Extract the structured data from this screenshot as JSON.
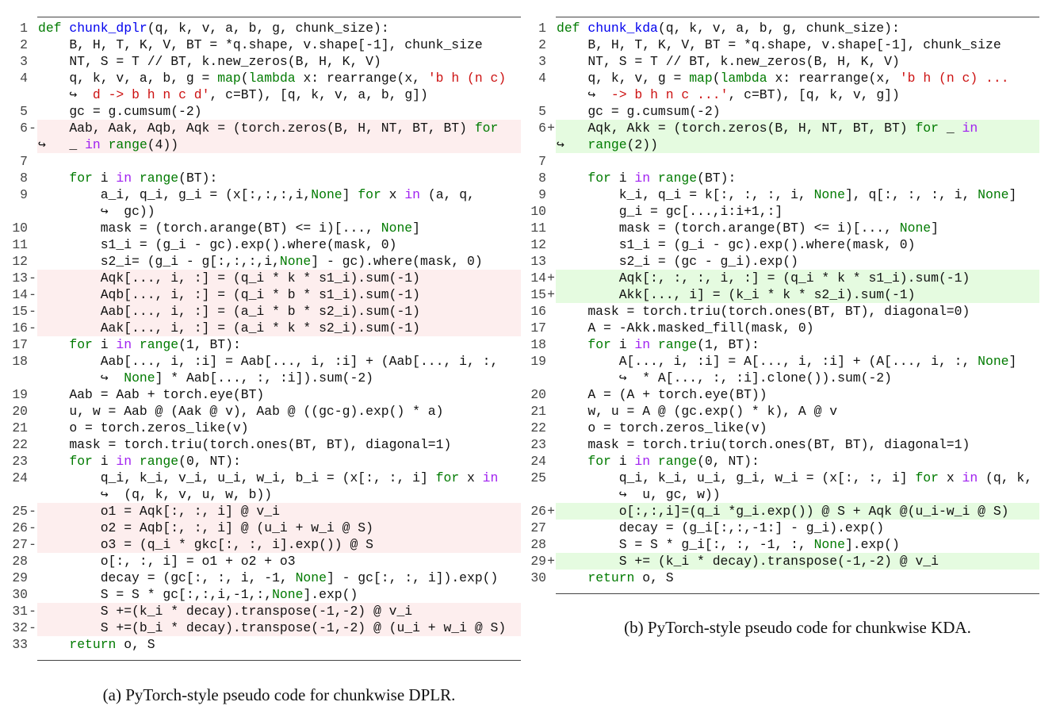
{
  "left": {
    "caption": "(a) PyTorch-style pseudo code for chunkwise DPLR.",
    "lines": [
      {
        "n": "1",
        "d": "",
        "segs": [
          [
            "k",
            "def"
          ],
          [
            "t",
            " "
          ],
          [
            "f",
            "chunk_dplr"
          ],
          [
            "t",
            "(q, k, v, a, b, g, chunk_size):"
          ]
        ]
      },
      {
        "n": "2",
        "d": "",
        "segs": [
          [
            "t",
            "    B, H, T, K, V, BT = *q.shape, v.shape[-1], chunk_size"
          ]
        ]
      },
      {
        "n": "3",
        "d": "",
        "segs": [
          [
            "t",
            "    NT, S = T // BT, k.new_zeros(B, H, K, V)"
          ]
        ]
      },
      {
        "n": "4",
        "d": "",
        "segs": [
          [
            "t",
            "    q, k, v, a, b, g = "
          ],
          [
            "k",
            "map"
          ],
          [
            "t",
            "("
          ],
          [
            "k",
            "lambda"
          ],
          [
            "t",
            " x: rearrange(x, "
          ],
          [
            "s",
            "'b h (n c)"
          ]
        ],
        "cont": [
          [
            "t",
            "    ↪  "
          ],
          [
            "s",
            "d -> b h n c d'"
          ],
          [
            "t",
            ", c=BT), [q, k, v, a, b, g])"
          ]
        ]
      },
      {
        "n": "5",
        "d": "",
        "segs": [
          [
            "t",
            "    gc = g.cumsum(-2)"
          ]
        ]
      },
      {
        "n": "6",
        "d": "-",
        "segs": [
          [
            "t",
            "    Aab, Aak, Aqb, Aqk = (torch.zeros(B, H, NT, BT, BT) "
          ],
          [
            "k",
            "for"
          ]
        ],
        "cont": [
          [
            "t",
            "↪   _ "
          ],
          [
            "p",
            "in"
          ],
          [
            "t",
            " "
          ],
          [
            "k",
            "range"
          ],
          [
            "t",
            "(4))"
          ]
        ]
      },
      {
        "n": "7",
        "d": "",
        "segs": []
      },
      {
        "n": "8",
        "d": "",
        "segs": [
          [
            "t",
            "    "
          ],
          [
            "k",
            "for"
          ],
          [
            "t",
            " i "
          ],
          [
            "p",
            "in"
          ],
          [
            "t",
            " "
          ],
          [
            "k",
            "range"
          ],
          [
            "t",
            "(BT):"
          ]
        ]
      },
      {
        "n": "9",
        "d": "",
        "segs": [
          [
            "t",
            "        a_i, q_i, g_i = (x[:,:,:,i,"
          ],
          [
            "k",
            "None"
          ],
          [
            "t",
            "] "
          ],
          [
            "k",
            "for"
          ],
          [
            "t",
            " x "
          ],
          [
            "p",
            "in"
          ],
          [
            "t",
            " (a, q,"
          ]
        ],
        "cont": [
          [
            "t",
            "        ↪  gc))"
          ]
        ]
      },
      {
        "n": "10",
        "d": "",
        "segs": [
          [
            "t",
            "        mask = (torch.arange(BT) <= i)[..., "
          ],
          [
            "k",
            "None"
          ],
          [
            "t",
            "]"
          ]
        ]
      },
      {
        "n": "11",
        "d": "",
        "segs": [
          [
            "t",
            "        s1_i = (g_i - gc).exp().where(mask, 0)"
          ]
        ]
      },
      {
        "n": "12",
        "d": "",
        "segs": [
          [
            "t",
            "        s2_i= (g_i - g[:,:,:,i,"
          ],
          [
            "k",
            "None"
          ],
          [
            "t",
            "] - gc).where(mask, 0)"
          ]
        ]
      },
      {
        "n": "13",
        "d": "-",
        "segs": [
          [
            "t",
            "        Aqk[..., i, :] = (q_i * k * s1_i).sum(-1)"
          ]
        ]
      },
      {
        "n": "14",
        "d": "-",
        "segs": [
          [
            "t",
            "        Aqb[..., i, :] = (q_i * b * s1_i).sum(-1)"
          ]
        ]
      },
      {
        "n": "15",
        "d": "-",
        "segs": [
          [
            "t",
            "        Aab[..., i, :] = (a_i * b * s2_i).sum(-1)"
          ]
        ]
      },
      {
        "n": "16",
        "d": "-",
        "segs": [
          [
            "t",
            "        Aak[..., i, :] = (a_i * k * s2_i).sum(-1)"
          ]
        ]
      },
      {
        "n": "17",
        "d": "",
        "segs": [
          [
            "t",
            "    "
          ],
          [
            "k",
            "for"
          ],
          [
            "t",
            " i "
          ],
          [
            "p",
            "in"
          ],
          [
            "t",
            " "
          ],
          [
            "k",
            "range"
          ],
          [
            "t",
            "(1, BT):"
          ]
        ]
      },
      {
        "n": "18",
        "d": "",
        "segs": [
          [
            "t",
            "        Aab[..., i, :i] = Aab[..., i, :i] + (Aab[..., i, :,"
          ]
        ],
        "cont": [
          [
            "t",
            "        ↪  "
          ],
          [
            "k",
            "None"
          ],
          [
            "t",
            "] * Aab[..., :, :i]).sum(-2)"
          ]
        ]
      },
      {
        "n": "19",
        "d": "",
        "segs": [
          [
            "t",
            "    Aab = Aab + torch.eye(BT)"
          ]
        ]
      },
      {
        "n": "20",
        "d": "",
        "segs": [
          [
            "t",
            "    u, w = Aab @ (Aak @ v), Aab @ ((gc-g).exp() * a)"
          ]
        ]
      },
      {
        "n": "21",
        "d": "",
        "segs": [
          [
            "t",
            "    o = torch.zeros_like(v)"
          ]
        ]
      },
      {
        "n": "22",
        "d": "",
        "segs": [
          [
            "t",
            "    mask = torch.triu(torch.ones(BT, BT), diagonal=1)"
          ]
        ]
      },
      {
        "n": "23",
        "d": "",
        "segs": [
          [
            "t",
            "    "
          ],
          [
            "k",
            "for"
          ],
          [
            "t",
            " i "
          ],
          [
            "p",
            "in"
          ],
          [
            "t",
            " "
          ],
          [
            "k",
            "range"
          ],
          [
            "t",
            "(0, NT):"
          ]
        ]
      },
      {
        "n": "24",
        "d": "",
        "segs": [
          [
            "t",
            "        q_i, k_i, v_i, u_i, w_i, b_i = (x[:, :, i] "
          ],
          [
            "k",
            "for"
          ],
          [
            "t",
            " x "
          ],
          [
            "p",
            "in"
          ]
        ],
        "cont": [
          [
            "t",
            "        ↪  (q, k, v, u, w, b))"
          ]
        ]
      },
      {
        "n": "25",
        "d": "-",
        "segs": [
          [
            "t",
            "        o1 = Aqk[:, :, i] @ v_i"
          ]
        ]
      },
      {
        "n": "26",
        "d": "-",
        "segs": [
          [
            "t",
            "        o2 = Aqb[:, :, i] @ (u_i + w_i @ S)"
          ]
        ]
      },
      {
        "n": "27",
        "d": "-",
        "segs": [
          [
            "t",
            "        o3 = (q_i * gkc[:, :, i].exp()) @ S"
          ]
        ]
      },
      {
        "n": "28",
        "d": "",
        "segs": [
          [
            "t",
            "        o[:, :, i] = o1 + o2 + o3"
          ]
        ]
      },
      {
        "n": "29",
        "d": "",
        "segs": [
          [
            "t",
            "        decay = (gc[:, :, i, -1, "
          ],
          [
            "k",
            "None"
          ],
          [
            "t",
            "] - gc[:, :, i]).exp()"
          ]
        ]
      },
      {
        "n": "30",
        "d": "",
        "segs": [
          [
            "t",
            "        S = S * gc[:,:,i,-1,:,"
          ],
          [
            "k",
            "None"
          ],
          [
            "t",
            "].exp()"
          ]
        ]
      },
      {
        "n": "31",
        "d": "-",
        "segs": [
          [
            "t",
            "        S +=(k_i * decay).transpose(-1,-2) @ v_i"
          ]
        ]
      },
      {
        "n": "32",
        "d": "-",
        "segs": [
          [
            "t",
            "        S +=(b_i * decay).transpose(-1,-2) @ (u_i + w_i @ S)"
          ]
        ]
      },
      {
        "n": "33",
        "d": "",
        "segs": [
          [
            "t",
            "    "
          ],
          [
            "k",
            "return"
          ],
          [
            "t",
            " o, S"
          ]
        ]
      }
    ]
  },
  "right": {
    "caption": "(b) PyTorch-style pseudo code for chunkwise KDA.",
    "lines": [
      {
        "n": "1",
        "d": "",
        "segs": [
          [
            "k",
            "def"
          ],
          [
            "t",
            " "
          ],
          [
            "f",
            "chunk_kda"
          ],
          [
            "t",
            "(q, k, v, a, b, g, chunk_size):"
          ]
        ]
      },
      {
        "n": "2",
        "d": "",
        "segs": [
          [
            "t",
            "    B, H, T, K, V, BT = *q.shape, v.shape[-1], chunk_size"
          ]
        ]
      },
      {
        "n": "3",
        "d": "",
        "segs": [
          [
            "t",
            "    NT, S = T // BT, k.new_zeros(B, H, K, V)"
          ]
        ]
      },
      {
        "n": "4",
        "d": "",
        "segs": [
          [
            "t",
            "    q, k, v, g = "
          ],
          [
            "k",
            "map"
          ],
          [
            "t",
            "("
          ],
          [
            "k",
            "lambda"
          ],
          [
            "t",
            " x: rearrange(x, "
          ],
          [
            "s",
            "'b h (n c) ..."
          ]
        ],
        "cont": [
          [
            "t",
            "    ↪  "
          ],
          [
            "s",
            "-> b h n c ...'"
          ],
          [
            "t",
            ", c=BT), [q, k, v, g])"
          ]
        ]
      },
      {
        "n": "5",
        "d": "",
        "segs": [
          [
            "t",
            "    gc = g.cumsum(-2)"
          ]
        ]
      },
      {
        "n": "6",
        "d": "+",
        "segs": [
          [
            "t",
            "    Aqk, Akk = (torch.zeros(B, H, NT, BT, BT) "
          ],
          [
            "k",
            "for"
          ],
          [
            "t",
            " _ "
          ],
          [
            "p",
            "in"
          ]
        ],
        "cont": [
          [
            "t",
            "↪   "
          ],
          [
            "k",
            "range"
          ],
          [
            "t",
            "(2))"
          ]
        ]
      },
      {
        "n": "7",
        "d": "",
        "segs": []
      },
      {
        "n": "8",
        "d": "",
        "segs": [
          [
            "t",
            "    "
          ],
          [
            "k",
            "for"
          ],
          [
            "t",
            " i "
          ],
          [
            "p",
            "in"
          ],
          [
            "t",
            " "
          ],
          [
            "k",
            "range"
          ],
          [
            "t",
            "(BT):"
          ]
        ]
      },
      {
        "n": "9",
        "d": "",
        "segs": [
          [
            "t",
            "        k_i, q_i = k[:, :, :, i, "
          ],
          [
            "k",
            "None"
          ],
          [
            "t",
            "], q[:, :, :, i, "
          ],
          [
            "k",
            "None"
          ],
          [
            "t",
            "]"
          ]
        ]
      },
      {
        "n": "10",
        "d": "",
        "segs": [
          [
            "t",
            "        g_i = gc[...,i:i+1,:]"
          ]
        ]
      },
      {
        "n": "11",
        "d": "",
        "segs": [
          [
            "t",
            "        mask = (torch.arange(BT) <= i)[..., "
          ],
          [
            "k",
            "None"
          ],
          [
            "t",
            "]"
          ]
        ]
      },
      {
        "n": "12",
        "d": "",
        "segs": [
          [
            "t",
            "        s1_i = (g_i - gc).exp().where(mask, 0)"
          ]
        ]
      },
      {
        "n": "13",
        "d": "",
        "segs": [
          [
            "t",
            "        s2_i = (gc - g_i).exp()"
          ]
        ]
      },
      {
        "n": "14",
        "d": "+",
        "segs": [
          [
            "t",
            "        Aqk[:, :, :, i, :] = (q_i * k * s1_i).sum(-1)"
          ]
        ]
      },
      {
        "n": "15",
        "d": "+",
        "segs": [
          [
            "t",
            "        Akk[..., i] = (k_i * k * s2_i).sum(-1)"
          ]
        ]
      },
      {
        "n": "16",
        "d": "",
        "segs": [
          [
            "t",
            "    mask = torch.triu(torch.ones(BT, BT), diagonal=0)"
          ]
        ]
      },
      {
        "n": "17",
        "d": "",
        "segs": [
          [
            "t",
            "    A = -Akk.masked_fill(mask, 0)"
          ]
        ]
      },
      {
        "n": "18",
        "d": "",
        "segs": [
          [
            "t",
            "    "
          ],
          [
            "k",
            "for"
          ],
          [
            "t",
            " i "
          ],
          [
            "p",
            "in"
          ],
          [
            "t",
            " "
          ],
          [
            "k",
            "range"
          ],
          [
            "t",
            "(1, BT):"
          ]
        ]
      },
      {
        "n": "19",
        "d": "",
        "segs": [
          [
            "t",
            "        A[..., i, :i] = A[..., i, :i] + (A[..., i, :, "
          ],
          [
            "k",
            "None"
          ],
          [
            "t",
            "]"
          ]
        ],
        "cont": [
          [
            "t",
            "        ↪  * A[..., :, :i].clone()).sum(-2)"
          ]
        ]
      },
      {
        "n": "20",
        "d": "",
        "segs": [
          [
            "t",
            "    A = (A + torch.eye(BT))"
          ]
        ]
      },
      {
        "n": "21",
        "d": "",
        "segs": [
          [
            "t",
            "    w, u = A @ (gc.exp() * k), A @ v"
          ]
        ]
      },
      {
        "n": "22",
        "d": "",
        "segs": [
          [
            "t",
            "    o = torch.zeros_like(v)"
          ]
        ]
      },
      {
        "n": "23",
        "d": "",
        "segs": [
          [
            "t",
            "    mask = torch.triu(torch.ones(BT, BT), diagonal=1)"
          ]
        ]
      },
      {
        "n": "24",
        "d": "",
        "segs": [
          [
            "t",
            "    "
          ],
          [
            "k",
            "for"
          ],
          [
            "t",
            " i "
          ],
          [
            "p",
            "in"
          ],
          [
            "t",
            " "
          ],
          [
            "k",
            "range"
          ],
          [
            "t",
            "(0, NT):"
          ]
        ]
      },
      {
        "n": "25",
        "d": "",
        "segs": [
          [
            "t",
            "        q_i, k_i, u_i, g_i, w_i = (x[:, :, i] "
          ],
          [
            "k",
            "for"
          ],
          [
            "t",
            " x "
          ],
          [
            "p",
            "in"
          ],
          [
            "t",
            " (q, k,"
          ]
        ],
        "cont": [
          [
            "t",
            "        ↪  u, gc, w))"
          ]
        ]
      },
      {
        "n": "26",
        "d": "+",
        "segs": [
          [
            "t",
            "        o[:,:,i]=(q_i *g_i.exp()) @ S + Aqk @(u_i-w_i @ S)"
          ]
        ]
      },
      {
        "n": "27",
        "d": "",
        "segs": [
          [
            "t",
            "        decay = (g_i[:,:,-1:] - g_i).exp()"
          ]
        ]
      },
      {
        "n": "28",
        "d": "",
        "segs": [
          [
            "t",
            "        S = S * g_i[:, :, -1, :, "
          ],
          [
            "k",
            "None"
          ],
          [
            "t",
            "].exp()"
          ]
        ]
      },
      {
        "n": "29",
        "d": "+",
        "segs": [
          [
            "t",
            "        S += (k_i * decay).transpose(-1,-2) @ v_i"
          ]
        ]
      },
      {
        "n": "30",
        "d": "",
        "segs": [
          [
            "t",
            "    "
          ],
          [
            "k",
            "return"
          ],
          [
            "t",
            " o, S"
          ]
        ]
      }
    ]
  },
  "colors": {
    "keyword": "#007a00",
    "in_keyword": "#a020f0",
    "function_name": "#0000ee",
    "string": "#cc1111",
    "removed_bg": "#fdeeee",
    "added_bg": "#e5fbe0"
  }
}
